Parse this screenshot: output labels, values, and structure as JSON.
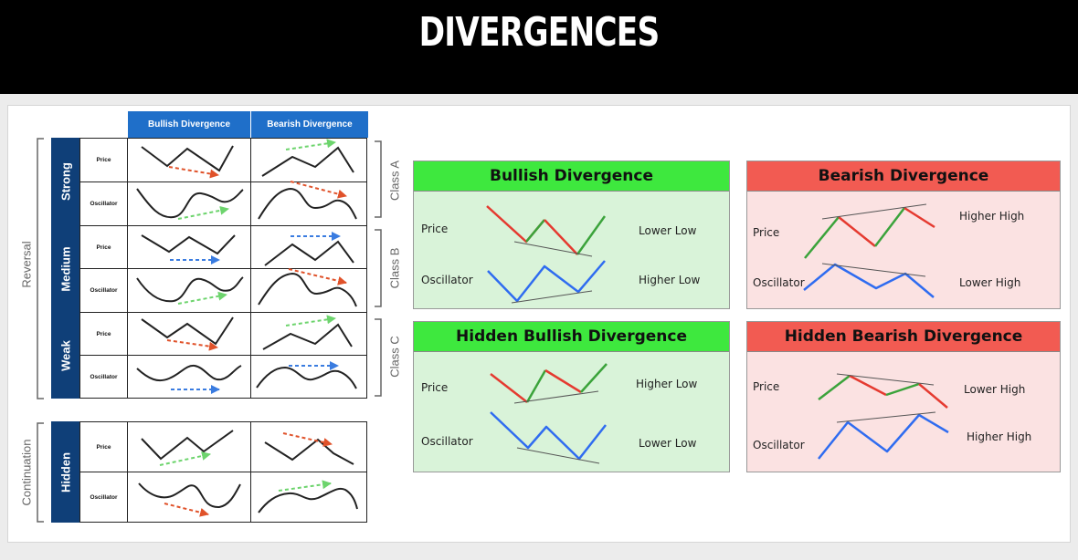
{
  "title": "DIVERGENCES",
  "table": {
    "headers": [
      "Bullish Divergence",
      "Bearish Divergence"
    ],
    "row_labels": {
      "price": "Price",
      "oscillator": "Oscillator"
    },
    "strengths": [
      "Strong",
      "Medium",
      "Weak",
      "Hidden"
    ],
    "classes": [
      "Class A",
      "Class B",
      "Class C"
    ],
    "groups": [
      "Reversal",
      "Continuation"
    ]
  },
  "panels": {
    "bullish": {
      "title": "Bullish Divergence",
      "price_label": "Price",
      "osc_label": "Oscillator",
      "price_note": "Lower Low",
      "osc_note": "Higher Low"
    },
    "bearish": {
      "title": "Bearish Divergence",
      "price_label": "Price",
      "osc_label": "Oscillator",
      "price_note": "Higher High",
      "osc_note": "Lower High"
    },
    "hidden_bullish": {
      "title": "Hidden Bullish Divergence",
      "price_label": "Price",
      "osc_label": "Oscillator",
      "price_note": "Higher Low",
      "osc_note": "Lower Low"
    },
    "hidden_bearish": {
      "title": "Hidden Bearish Divergence",
      "price_label": "Price",
      "osc_label": "Oscillator",
      "price_note": "Lower High",
      "osc_note": "Higher High"
    }
  },
  "colors": {
    "header_blue": "#1f6fc9",
    "strength_navy": "#0f3f78",
    "panel_green": "#3ee83e",
    "panel_red": "#f25b52",
    "arrow_red": "#e0522a",
    "arrow_green": "#6dd46d",
    "arrow_blue": "#3a7ce0"
  }
}
